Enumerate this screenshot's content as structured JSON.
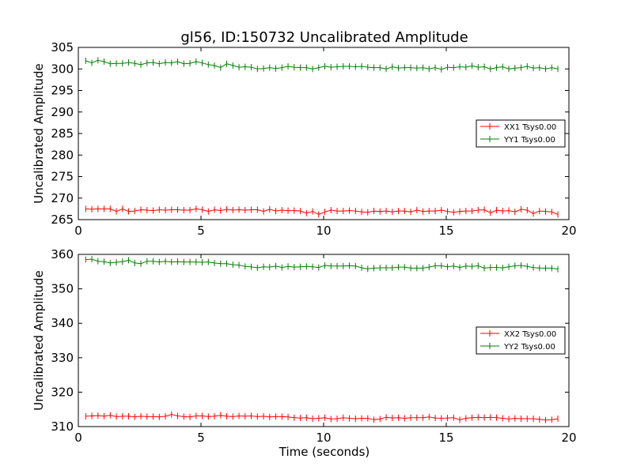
{
  "figure": {
    "title": "gl56, ID:150732 Uncalibrated Amplitude"
  },
  "colors": {
    "xx": "#ff0000",
    "yy": "#008000",
    "axis": "#000000",
    "background": "#ffffff"
  },
  "chart_data": [
    {
      "type": "line",
      "title": "gl56, ID:150732 Uncalibrated Amplitude",
      "xlabel": "",
      "ylabel": "Uncalibrated Amplitude",
      "xlim": [
        0,
        20
      ],
      "ylim": [
        265,
        305
      ],
      "xticks": [
        0,
        5,
        10,
        15,
        20
      ],
      "yticks": [
        265,
        270,
        275,
        280,
        285,
        290,
        295,
        300,
        305
      ],
      "grid": false,
      "legend_position": "center-right",
      "series": [
        {
          "name": "XX1 Tsys0.00",
          "color": "#ff0000",
          "x": [
            0.3,
            0.55,
            0.8,
            1.05,
            1.3,
            1.55,
            1.8,
            2.05,
            2.3,
            2.55,
            2.8,
            3.05,
            3.3,
            3.55,
            3.8,
            4.05,
            4.3,
            4.55,
            4.8,
            5.05,
            5.3,
            5.55,
            5.8,
            6.05,
            6.3,
            6.55,
            6.8,
            7.05,
            7.3,
            7.55,
            7.8,
            8.05,
            8.3,
            8.55,
            8.8,
            9.05,
            9.3,
            9.55,
            9.8,
            10.05,
            10.3,
            10.55,
            10.8,
            11.05,
            11.3,
            11.55,
            11.8,
            12.05,
            12.3,
            12.55,
            12.8,
            13.05,
            13.3,
            13.55,
            13.8,
            14.05,
            14.3,
            14.55,
            14.8,
            15.05,
            15.3,
            15.55,
            15.8,
            16.05,
            16.3,
            16.55,
            16.8,
            17.05,
            17.3,
            17.55,
            17.8,
            18.05,
            18.3,
            18.55,
            18.8,
            19.05,
            19.3,
            19.55
          ],
          "values": [
            267.5,
            267.4,
            267.5,
            267.5,
            267.5,
            266.9,
            267.5,
            266.9,
            267.0,
            267.3,
            267.2,
            267.1,
            267.3,
            267.2,
            267.3,
            267.3,
            267.2,
            267.2,
            267.5,
            267.3,
            266.9,
            267.3,
            267.1,
            267.4,
            267.2,
            267.3,
            267.2,
            267.3,
            267.3,
            266.9,
            267.4,
            267.0,
            267.2,
            267.1,
            267.1,
            267.0,
            266.5,
            266.9,
            266.2,
            266.8,
            267.2,
            267.0,
            267.0,
            267.1,
            267.0,
            266.8,
            266.7,
            267.0,
            266.9,
            267.0,
            266.8,
            267.0,
            267.0,
            266.8,
            267.2,
            266.9,
            267.0,
            267.0,
            267.2,
            266.9,
            266.7,
            266.9,
            267.0,
            267.0,
            267.2,
            267.3,
            266.6,
            267.2,
            267.0,
            267.1,
            266.8,
            267.4,
            267.2,
            266.4,
            267.0,
            266.9,
            266.8,
            266.2
          ]
        },
        {
          "name": "YY1 Tsys0.00",
          "color": "#008000",
          "x": [
            0.3,
            0.55,
            0.8,
            1.05,
            1.3,
            1.55,
            1.8,
            2.05,
            2.3,
            2.55,
            2.8,
            3.05,
            3.3,
            3.55,
            3.8,
            4.05,
            4.3,
            4.55,
            4.8,
            5.05,
            5.3,
            5.55,
            5.8,
            6.05,
            6.3,
            6.55,
            6.8,
            7.05,
            7.3,
            7.55,
            7.8,
            8.05,
            8.3,
            8.55,
            8.8,
            9.05,
            9.3,
            9.55,
            9.8,
            10.05,
            10.3,
            10.55,
            10.8,
            11.05,
            11.3,
            11.55,
            11.8,
            12.05,
            12.3,
            12.55,
            12.8,
            13.05,
            13.3,
            13.55,
            13.8,
            14.05,
            14.3,
            14.55,
            14.8,
            15.05,
            15.3,
            15.55,
            15.8,
            16.05,
            16.3,
            16.55,
            16.8,
            17.05,
            17.3,
            17.55,
            17.8,
            18.05,
            18.3,
            18.55,
            18.8,
            19.05,
            19.3,
            19.55
          ],
          "values": [
            301.9,
            301.4,
            302.0,
            301.7,
            301.2,
            301.3,
            301.3,
            301.5,
            301.3,
            301.0,
            301.4,
            301.5,
            301.2,
            301.5,
            301.4,
            301.7,
            301.2,
            301.3,
            301.7,
            301.4,
            301.0,
            300.8,
            300.3,
            301.2,
            300.8,
            300.4,
            300.5,
            300.4,
            300.0,
            300.1,
            300.3,
            300.1,
            300.3,
            300.6,
            300.4,
            300.3,
            300.3,
            300.0,
            300.3,
            300.6,
            300.4,
            300.5,
            300.6,
            300.6,
            300.5,
            300.6,
            300.4,
            300.3,
            300.3,
            300.0,
            300.5,
            300.2,
            300.3,
            300.3,
            300.2,
            300.3,
            300.0,
            300.3,
            299.9,
            300.4,
            300.3,
            300.5,
            300.4,
            300.7,
            300.4,
            300.5,
            300.0,
            300.3,
            300.5,
            300.0,
            300.2,
            300.3,
            300.6,
            300.2,
            300.3,
            300.0,
            300.3,
            300.0
          ]
        }
      ]
    },
    {
      "type": "line",
      "title": "",
      "xlabel": "Time (seconds)",
      "ylabel": "Uncalibrated Amplitude",
      "xlim": [
        0,
        20
      ],
      "ylim": [
        310,
        360
      ],
      "xticks": [
        0,
        5,
        10,
        15,
        20
      ],
      "yticks": [
        310,
        320,
        330,
        340,
        350,
        360
      ],
      "grid": false,
      "legend_position": "center-right",
      "series": [
        {
          "name": "XX2 Tsys0.00",
          "color": "#ff0000",
          "x": [
            0.3,
            0.55,
            0.8,
            1.05,
            1.3,
            1.55,
            1.8,
            2.05,
            2.3,
            2.55,
            2.8,
            3.05,
            3.3,
            3.55,
            3.8,
            4.05,
            4.3,
            4.55,
            4.8,
            5.05,
            5.3,
            5.55,
            5.8,
            6.05,
            6.3,
            6.55,
            6.8,
            7.05,
            7.3,
            7.55,
            7.8,
            8.05,
            8.3,
            8.55,
            8.8,
            9.05,
            9.3,
            9.55,
            9.8,
            10.05,
            10.3,
            10.55,
            10.8,
            11.05,
            11.3,
            11.55,
            11.8,
            12.05,
            12.3,
            12.55,
            12.8,
            13.05,
            13.3,
            13.55,
            13.8,
            14.05,
            14.3,
            14.55,
            14.8,
            15.05,
            15.3,
            15.55,
            15.8,
            16.05,
            16.3,
            16.55,
            16.8,
            17.05,
            17.3,
            17.55,
            17.8,
            18.05,
            18.3,
            18.55,
            18.8,
            19.05,
            19.3,
            19.55
          ],
          "values": [
            313.0,
            313.1,
            313.2,
            313.0,
            313.3,
            312.9,
            313.0,
            313.0,
            312.8,
            313.0,
            312.9,
            312.9,
            312.8,
            313.0,
            313.5,
            313.1,
            312.9,
            312.8,
            313.1,
            313.1,
            312.9,
            313.0,
            313.3,
            313.0,
            312.9,
            313.1,
            313.0,
            313.1,
            312.9,
            313.0,
            312.8,
            312.9,
            312.9,
            312.8,
            312.6,
            312.5,
            312.6,
            312.3,
            312.4,
            312.6,
            312.2,
            312.3,
            312.6,
            312.4,
            312.3,
            312.4,
            312.4,
            312.0,
            312.2,
            312.7,
            312.5,
            312.6,
            312.4,
            312.6,
            312.6,
            312.6,
            312.8,
            312.5,
            312.4,
            312.5,
            312.6,
            312.0,
            312.4,
            312.6,
            312.7,
            312.6,
            312.7,
            312.6,
            312.4,
            312.2,
            312.4,
            312.3,
            312.3,
            312.3,
            312.1,
            311.9,
            312.0,
            312.3
          ]
        },
        {
          "name": "YY2 Tsys0.00",
          "color": "#008000",
          "x": [
            0.3,
            0.55,
            0.8,
            1.05,
            1.3,
            1.55,
            1.8,
            2.05,
            2.3,
            2.55,
            2.8,
            3.05,
            3.3,
            3.55,
            3.8,
            4.05,
            4.3,
            4.55,
            4.8,
            5.05,
            5.3,
            5.55,
            5.8,
            6.05,
            6.3,
            6.55,
            6.8,
            7.05,
            7.3,
            7.55,
            7.8,
            8.05,
            8.3,
            8.55,
            8.8,
            9.05,
            9.3,
            9.55,
            9.8,
            10.05,
            10.3,
            10.55,
            10.8,
            11.05,
            11.3,
            11.55,
            11.8,
            12.05,
            12.3,
            12.55,
            12.8,
            13.05,
            13.3,
            13.55,
            13.8,
            14.05,
            14.3,
            14.55,
            14.8,
            15.05,
            15.3,
            15.55,
            15.8,
            16.05,
            16.3,
            16.55,
            16.8,
            17.05,
            17.3,
            17.55,
            17.8,
            18.05,
            18.3,
            18.55,
            18.8,
            19.05,
            19.3,
            19.55
          ],
          "values": [
            358.5,
            358.6,
            358.0,
            357.9,
            357.5,
            357.7,
            357.9,
            358.3,
            357.5,
            357.3,
            358.0,
            358.0,
            357.8,
            358.0,
            357.8,
            357.9,
            357.8,
            357.8,
            357.8,
            357.7,
            357.8,
            357.5,
            357.3,
            357.3,
            357.0,
            356.9,
            356.5,
            356.4,
            356.1,
            356.4,
            356.3,
            356.6,
            356.2,
            356.5,
            356.3,
            356.4,
            356.5,
            356.4,
            356.2,
            356.8,
            356.6,
            356.6,
            356.6,
            356.7,
            356.6,
            356.1,
            355.8,
            356.0,
            356.1,
            356.1,
            356.1,
            356.3,
            356.3,
            356.0,
            356.0,
            356.0,
            356.3,
            356.7,
            356.7,
            356.4,
            356.6,
            356.2,
            356.6,
            356.5,
            356.7,
            356.0,
            356.2,
            356.2,
            356.1,
            356.4,
            356.7,
            356.8,
            356.5,
            356.2,
            356.0,
            356.0,
            356.0,
            355.7
          ]
        }
      ]
    }
  ]
}
